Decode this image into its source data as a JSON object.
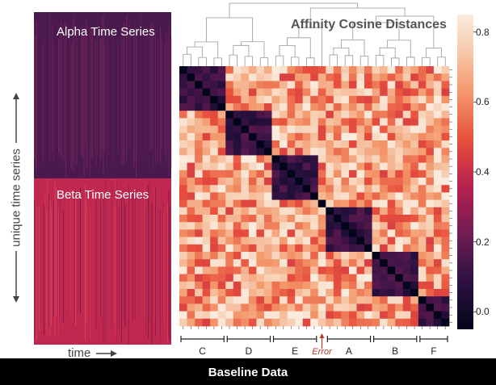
{
  "footer": {
    "title": "Baseline Data"
  },
  "time_series": {
    "alpha_label": "Alpha Time Series",
    "beta_label": "Beta Time Series",
    "y_axis_label": "unique time series",
    "x_axis_label": "time",
    "alpha_color": "#4a1a4f",
    "beta_color": "#c0284f"
  },
  "chart_data": {
    "type": "heatmap",
    "title": "Affinity Cosine Distances",
    "colorbar": {
      "ticks": [
        "0.0",
        "0.2",
        "0.4",
        "0.6",
        "0.8"
      ],
      "range": [
        -0.05,
        0.85
      ]
    },
    "clusters": [
      {
        "label": "C",
        "size": 6
      },
      {
        "label": "D",
        "size": 6
      },
      {
        "label": "E",
        "size": 6
      },
      {
        "label": "Error",
        "size": 1
      },
      {
        "label": "A",
        "size": 6
      },
      {
        "label": "B",
        "size": 6
      },
      {
        "label": "F",
        "size": 4
      }
    ],
    "within_cluster_distance": 0.05,
    "between_cluster_distance": 0.65
  }
}
